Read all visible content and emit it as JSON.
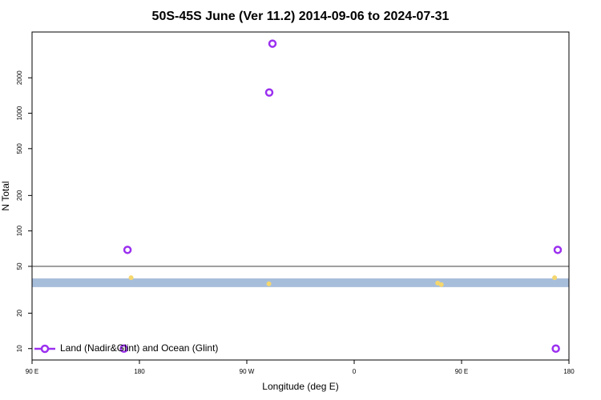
{
  "chart_data": {
    "type": "scatter",
    "title": "50S-45S June (Ver 11.2)   2014-09-06 to 2024-07-31",
    "x_label": "Longitude (deg E)",
    "y_label": "N Total",
    "xlim": [
      90,
      540
    ],
    "xticks": [
      {
        "value": 90,
        "label": "90 E"
      },
      {
        "value": 180,
        "label": "180"
      },
      {
        "value": 270,
        "label": "90 W"
      },
      {
        "value": 360,
        "label": "0"
      },
      {
        "value": 450,
        "label": "90 E"
      },
      {
        "value": 540,
        "label": "180"
      }
    ],
    "ylim": [
      8,
      4900
    ],
    "y_scale": "log",
    "yticks": [
      10,
      20,
      50,
      100,
      200,
      500,
      1000,
      2000
    ],
    "reference_line": 50,
    "band": [
      33.3,
      39.5
    ],
    "band_color": "#a7bedb",
    "legend_position": "lower left",
    "series": [
      {
        "name": "Land (Nadir&Glint) and Ocean (Glint)",
        "color": "#9b30f0",
        "x": [
          291.5,
          288.8,
          170,
          530.6,
          167,
          529
        ],
        "values": [
          3900,
          1500,
          69,
          69,
          10,
          10
        ]
      },
      {
        "color": "#f5d76e",
        "x": [
          173,
          288.5,
          430,
          433,
          528
        ],
        "values": [
          40,
          35.5,
          36,
          35,
          40
        ]
      }
    ]
  }
}
